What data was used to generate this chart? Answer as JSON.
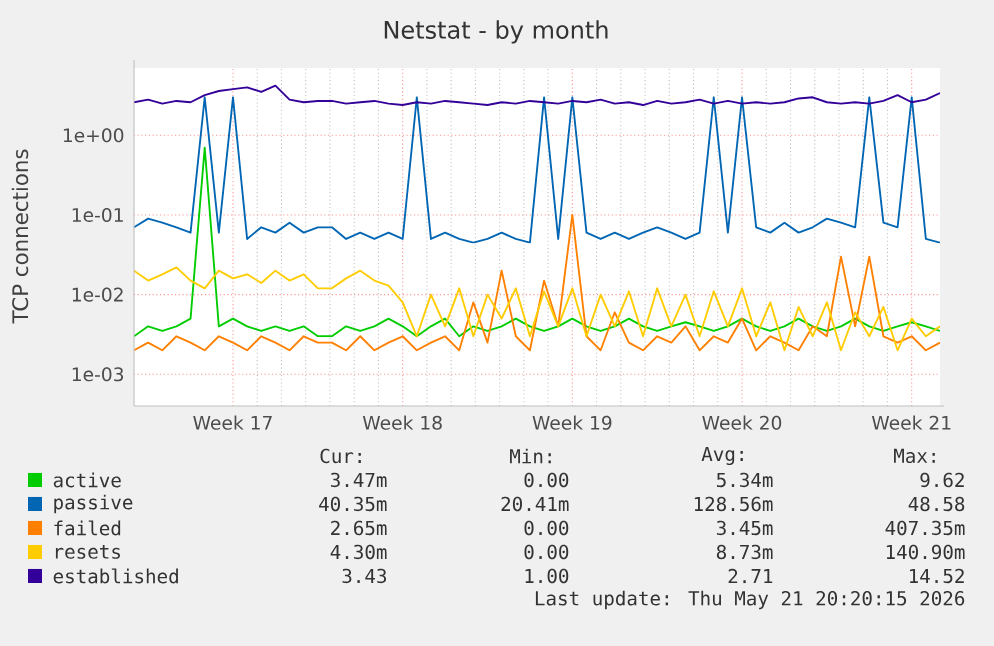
{
  "chart_data": {
    "type": "line",
    "title": "Netstat - by month",
    "ylabel": "TCP connections",
    "categories": [
      null,
      null,
      null,
      null,
      null,
      null,
      null,
      "Week 17",
      null,
      null,
      null,
      null,
      null,
      null,
      null,
      null,
      null,
      null,
      null,
      "Week 18",
      null,
      null,
      null,
      null,
      null,
      null,
      null,
      null,
      null,
      null,
      null,
      "Week 19",
      null,
      null,
      null,
      null,
      null,
      null,
      null,
      null,
      null,
      null,
      null,
      "Week 20",
      null,
      null,
      null,
      null,
      null,
      null,
      null,
      null,
      null,
      null,
      null,
      "Week 21",
      null,
      null
    ],
    "ylim": [
      0.0004,
      7
    ],
    "yticks": [
      {
        "value": 0.001,
        "label": "1e-03"
      },
      {
        "value": 0.01,
        "label": "1e-02"
      },
      {
        "value": 0.1,
        "label": "1e-01"
      },
      {
        "value": 1,
        "label": "1e+00"
      }
    ],
    "log": "y",
    "grid": true,
    "legend": "bottom",
    "series": [
      {
        "name": "active",
        "color": "#00cc00",
        "values": [
          0.003,
          0.004,
          0.0035,
          0.004,
          0.005,
          0.7,
          0.004,
          0.005,
          0.004,
          0.0035,
          0.004,
          0.0035,
          0.004,
          0.003,
          0.003,
          0.004,
          0.0035,
          0.004,
          0.005,
          0.004,
          0.003,
          0.004,
          0.005,
          0.003,
          0.004,
          0.0035,
          0.004,
          0.005,
          0.004,
          0.0035,
          0.004,
          0.005,
          0.004,
          0.0035,
          0.004,
          0.005,
          0.004,
          0.0035,
          0.004,
          0.0045,
          0.004,
          0.0035,
          0.004,
          0.005,
          0.004,
          0.0035,
          0.004,
          0.005,
          0.004,
          0.0035,
          0.004,
          0.005,
          0.004,
          0.0035,
          0.004,
          0.0045,
          0.004,
          0.0035
        ]
      },
      {
        "name": "passive",
        "color": "#0066b3",
        "values": [
          0.07,
          0.09,
          0.08,
          0.07,
          0.06,
          3.0,
          0.06,
          3.0,
          0.05,
          0.07,
          0.06,
          0.08,
          0.06,
          0.07,
          0.07,
          0.05,
          0.06,
          0.05,
          0.06,
          0.05,
          3.0,
          0.05,
          0.06,
          0.05,
          0.045,
          0.05,
          0.06,
          0.05,
          0.045,
          3.0,
          0.05,
          3.0,
          0.06,
          0.05,
          0.06,
          0.05,
          0.06,
          0.07,
          0.06,
          0.05,
          0.06,
          3.0,
          0.06,
          3.0,
          0.07,
          0.06,
          0.08,
          0.06,
          0.07,
          0.09,
          0.08,
          0.07,
          3.0,
          0.08,
          0.07,
          3.0,
          0.05,
          0.045
        ]
      },
      {
        "name": "failed",
        "color": "#ff8000",
        "values": [
          0.002,
          0.0025,
          0.002,
          0.003,
          0.0025,
          0.002,
          0.003,
          0.0025,
          0.002,
          0.003,
          0.0025,
          0.002,
          0.003,
          0.0025,
          0.0025,
          0.002,
          0.003,
          0.002,
          0.0025,
          0.003,
          0.002,
          0.0025,
          0.003,
          0.002,
          0.008,
          0.0025,
          0.02,
          0.003,
          0.002,
          0.015,
          0.004,
          0.1,
          0.003,
          0.002,
          0.006,
          0.0025,
          0.002,
          0.003,
          0.0025,
          0.004,
          0.002,
          0.003,
          0.0025,
          0.005,
          0.002,
          0.003,
          0.0025,
          0.002,
          0.004,
          0.003,
          0.03,
          0.004,
          0.03,
          0.003,
          0.0025,
          0.003,
          0.002,
          0.0025
        ]
      },
      {
        "name": "resets",
        "color": "#ffcc00",
        "values": [
          0.02,
          0.015,
          0.018,
          0.022,
          0.015,
          0.012,
          0.02,
          0.016,
          0.018,
          0.014,
          0.02,
          0.015,
          0.018,
          0.012,
          0.012,
          0.016,
          0.02,
          0.015,
          0.013,
          0.008,
          0.003,
          0.01,
          0.004,
          0.012,
          0.003,
          0.01,
          0.005,
          0.012,
          0.003,
          0.011,
          0.004,
          0.012,
          0.003,
          0.01,
          0.004,
          0.011,
          0.003,
          0.012,
          0.004,
          0.01,
          0.003,
          0.011,
          0.004,
          0.012,
          0.003,
          0.008,
          0.002,
          0.007,
          0.003,
          0.008,
          0.002,
          0.006,
          0.003,
          0.007,
          0.002,
          0.005,
          0.003,
          0.004
        ]
      },
      {
        "name": "established",
        "color": "#330099",
        "values": [
          2.6,
          2.8,
          2.5,
          2.7,
          2.6,
          3.2,
          3.6,
          3.8,
          4.0,
          3.5,
          4.2,
          2.8,
          2.6,
          2.7,
          2.7,
          2.5,
          2.6,
          2.7,
          2.5,
          2.4,
          2.6,
          2.5,
          2.7,
          2.6,
          2.5,
          2.4,
          2.6,
          2.5,
          2.7,
          2.6,
          2.5,
          2.7,
          2.6,
          2.8,
          2.5,
          2.6,
          2.4,
          2.7,
          2.5,
          2.6,
          2.8,
          2.5,
          2.7,
          2.5,
          2.6,
          2.5,
          2.6,
          2.9,
          3.0,
          2.6,
          2.5,
          2.6,
          2.5,
          2.7,
          3.2,
          2.6,
          2.8,
          3.4
        ]
      }
    ],
    "annotations": [
      "Cur:",
      "Min:",
      "Avg:",
      "Max:",
      "3.47m",
      "0.00",
      "5.34m",
      "9.62",
      "40.35m",
      "20.41m",
      "128.56m",
      "48.58",
      "2.65m",
      "0.00",
      "3.45m",
      "407.35m",
      "4.30m",
      "0.00",
      "8.73m",
      "140.90m",
      "3.43",
      "1.00",
      "2.71",
      "14.52",
      "Last update: Thu May 21 20:20:15 2026"
    ]
  }
}
